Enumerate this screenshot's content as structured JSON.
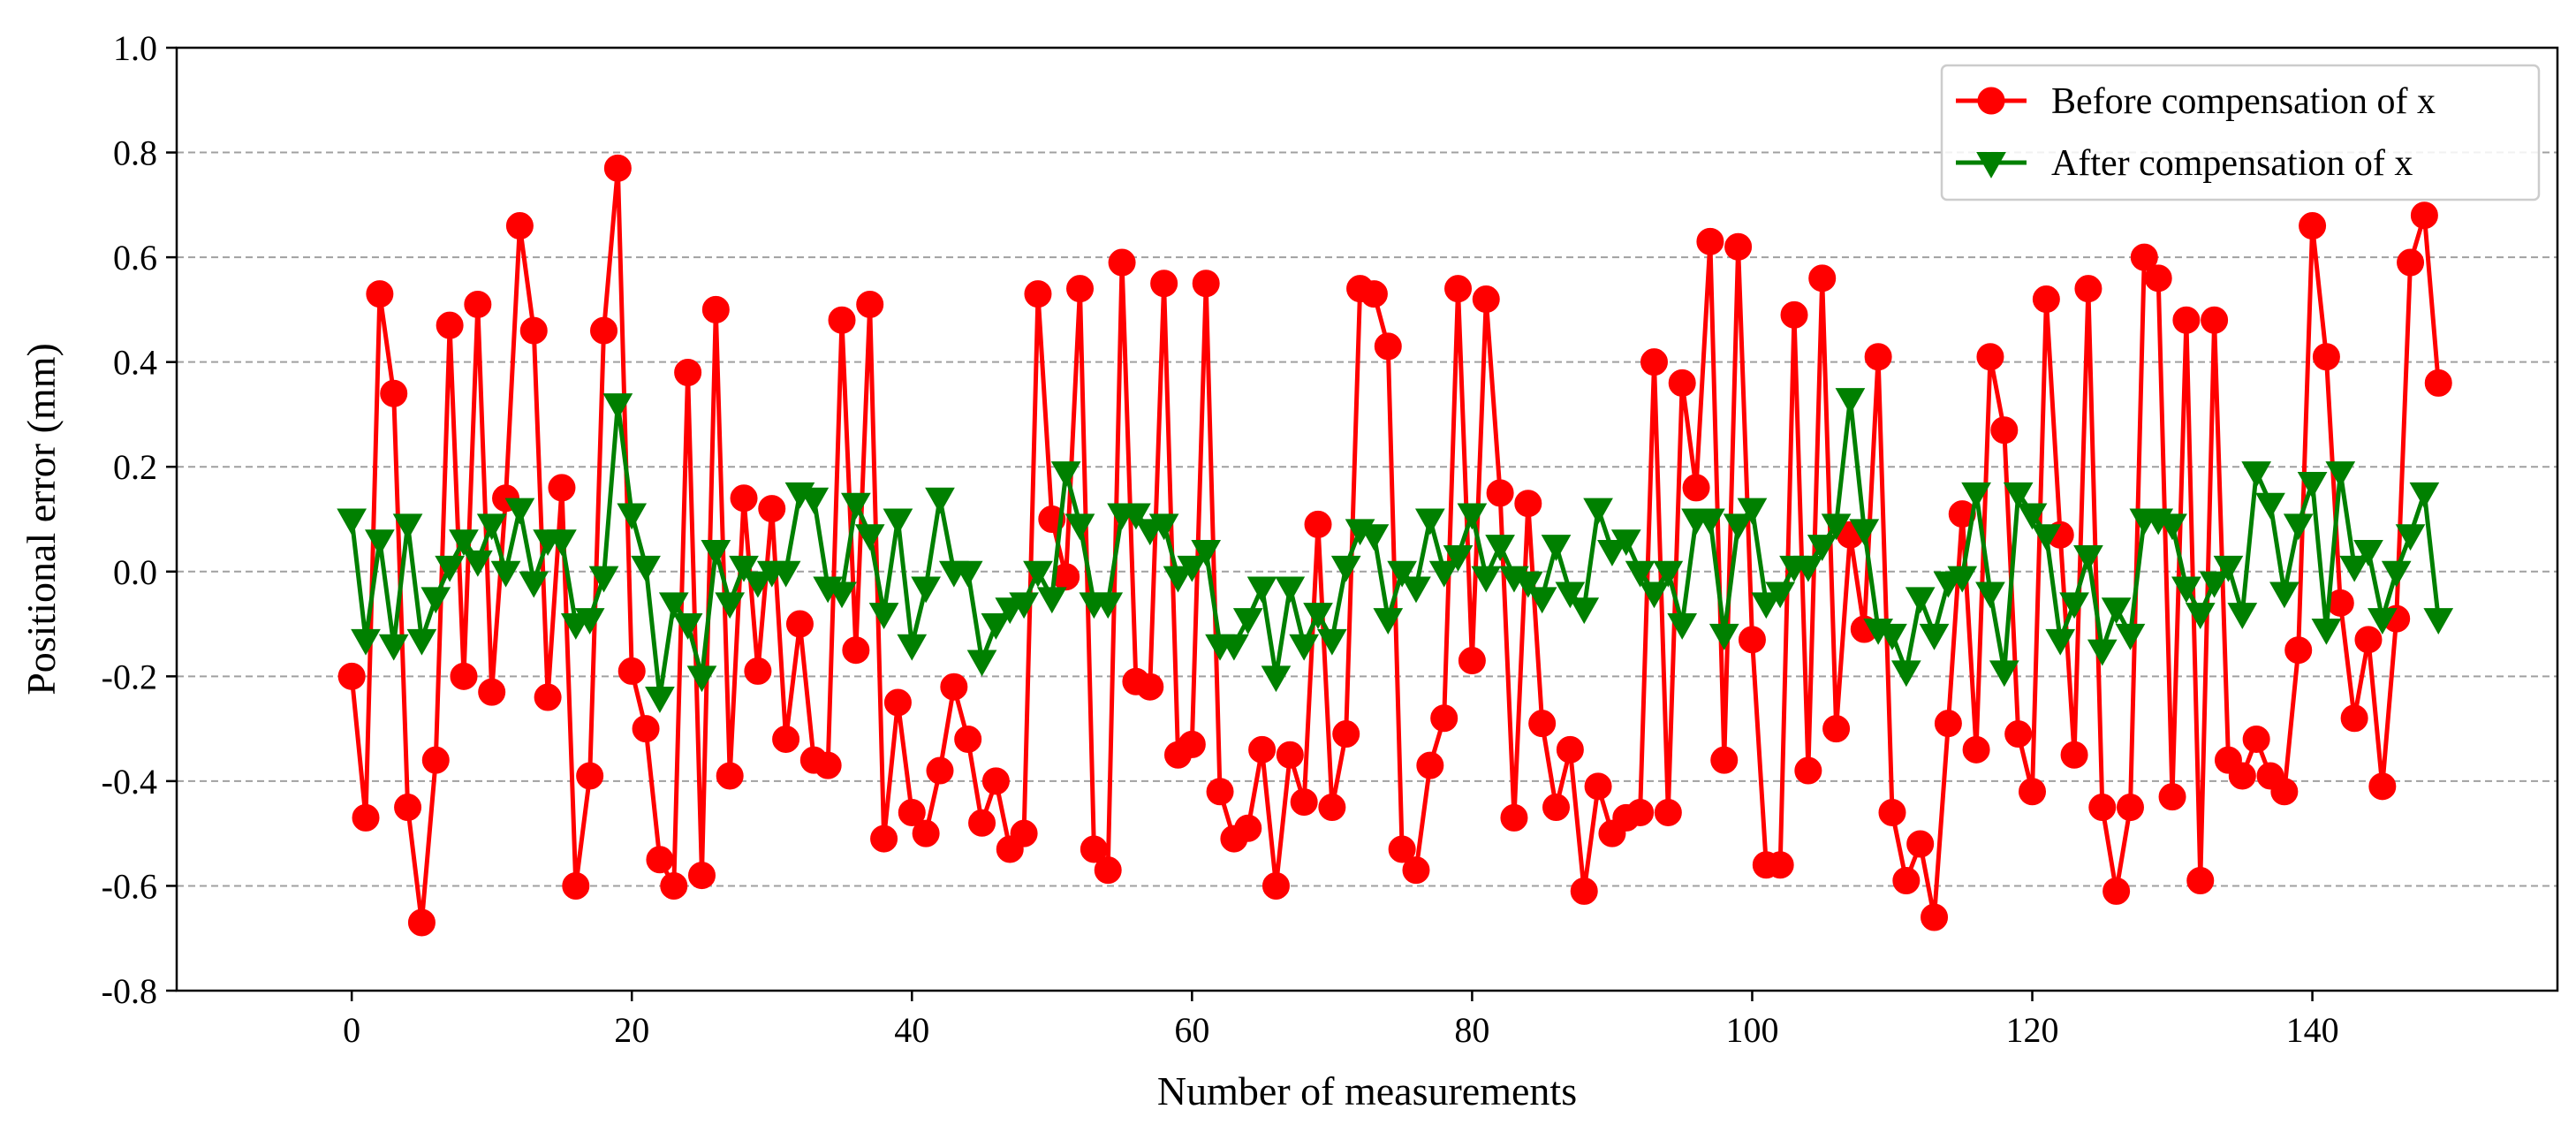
{
  "chart_data": {
    "type": "line",
    "xlabel": "Number of measurements",
    "ylabel": "Positional error (mm)",
    "xlim": [
      -12.5,
      157.5
    ],
    "ylim": [
      -0.8,
      1.0
    ],
    "xticks": [
      "0",
      "20",
      "40",
      "60",
      "80",
      "100",
      "120",
      "140"
    ],
    "yticks": [
      "-0.8",
      "-0.6",
      "-0.4",
      "-0.2",
      "0.0",
      "0.2",
      "0.4",
      "0.6",
      "0.8",
      "1.0"
    ],
    "grid": "horizontal dashed",
    "legend_position": "top-right",
    "series": [
      {
        "name": "Before compensation of x",
        "color": "#ff0000",
        "marker": "circle",
        "values": [
          -0.2,
          -0.47,
          0.53,
          0.34,
          -0.45,
          -0.67,
          -0.36,
          0.47,
          -0.2,
          0.51,
          -0.23,
          0.14,
          0.66,
          0.46,
          -0.24,
          0.16,
          -0.6,
          -0.39,
          0.46,
          0.77,
          -0.19,
          -0.3,
          -0.55,
          -0.6,
          0.38,
          -0.58,
          0.5,
          -0.39,
          0.14,
          -0.19,
          0.12,
          -0.32,
          -0.1,
          -0.36,
          -0.37,
          0.48,
          -0.15,
          0.51,
          -0.51,
          -0.25,
          -0.46,
          -0.5,
          -0.38,
          -0.22,
          -0.32,
          -0.48,
          -0.4,
          -0.53,
          -0.5,
          0.53,
          0.1,
          -0.01,
          0.54,
          -0.53,
          -0.57,
          0.59,
          -0.21,
          -0.22,
          0.55,
          -0.35,
          -0.33,
          0.55,
          -0.42,
          -0.51,
          -0.49,
          -0.34,
          -0.6,
          -0.35,
          -0.44,
          0.09,
          -0.45,
          -0.31,
          0.54,
          0.53,
          0.43,
          -0.53,
          -0.57,
          -0.37,
          -0.28,
          0.54,
          -0.17,
          0.52,
          0.15,
          -0.47,
          0.13,
          -0.29,
          -0.45,
          -0.34,
          -0.61,
          -0.41,
          -0.5,
          -0.47,
          -0.46,
          0.4,
          -0.46,
          0.36,
          0.16,
          0.63,
          -0.36,
          0.62,
          -0.13,
          -0.56,
          -0.56,
          0.49,
          -0.38,
          0.56,
          -0.3,
          0.07,
          -0.11,
          0.41,
          -0.46,
          -0.59,
          -0.52,
          -0.66,
          -0.29,
          0.11,
          -0.34,
          0.41,
          0.27,
          -0.31,
          -0.42,
          0.52,
          0.07,
          -0.35,
          0.54,
          -0.45,
          -0.61,
          -0.45,
          0.6,
          0.56,
          -0.43,
          0.48,
          -0.59,
          0.48,
          -0.36,
          -0.39,
          -0.32,
          -0.39,
          -0.42,
          -0.15,
          0.66,
          0.41,
          -0.06,
          -0.28,
          -0.13,
          -0.41,
          -0.09,
          0.59,
          0.68,
          0.36
        ]
      },
      {
        "name": "After compensation of x",
        "color": "#008000",
        "marker": "triangle-down",
        "values": [
          0.1,
          -0.13,
          0.06,
          -0.14,
          0.09,
          -0.13,
          -0.05,
          0.01,
          0.06,
          0.02,
          0.09,
          0.0,
          0.12,
          -0.02,
          0.06,
          0.06,
          -0.1,
          -0.09,
          -0.01,
          0.32,
          0.11,
          0.01,
          -0.24,
          -0.06,
          -0.1,
          -0.2,
          0.04,
          -0.06,
          0.01,
          -0.02,
          0.0,
          0.0,
          0.15,
          0.14,
          -0.03,
          -0.04,
          0.13,
          0.07,
          -0.08,
          0.1,
          -0.14,
          -0.03,
          0.14,
          0.0,
          0.0,
          -0.17,
          -0.1,
          -0.07,
          -0.06,
          0.0,
          -0.05,
          0.19,
          0.09,
          -0.06,
          -0.06,
          0.11,
          0.11,
          0.08,
          0.09,
          -0.01,
          0.01,
          0.04,
          -0.14,
          -0.14,
          -0.09,
          -0.03,
          -0.2,
          -0.03,
          -0.14,
          -0.08,
          -0.13,
          0.01,
          0.08,
          0.07,
          -0.09,
          0.0,
          -0.03,
          0.1,
          0.0,
          0.03,
          0.11,
          -0.01,
          0.05,
          -0.01,
          -0.02,
          -0.05,
          0.05,
          -0.04,
          -0.07,
          0.12,
          0.04,
          0.06,
          0.0,
          -0.04,
          0.0,
          -0.1,
          0.1,
          0.1,
          -0.12,
          0.09,
          0.12,
          -0.06,
          -0.04,
          0.01,
          0.01,
          0.05,
          0.09,
          0.33,
          0.08,
          -0.11,
          -0.12,
          -0.19,
          -0.05,
          -0.12,
          -0.02,
          -0.01,
          0.15,
          -0.04,
          -0.19,
          0.15,
          0.11,
          0.07,
          -0.13,
          -0.06,
          0.03,
          -0.15,
          -0.07,
          -0.12,
          0.1,
          0.1,
          0.09,
          -0.03,
          -0.08,
          -0.02,
          0.01,
          -0.08,
          0.19,
          0.13,
          -0.04,
          0.09,
          0.17,
          -0.11,
          0.19,
          0.01,
          0.04,
          -0.09,
          0.0,
          0.07,
          0.15,
          -0.09
        ]
      }
    ]
  }
}
